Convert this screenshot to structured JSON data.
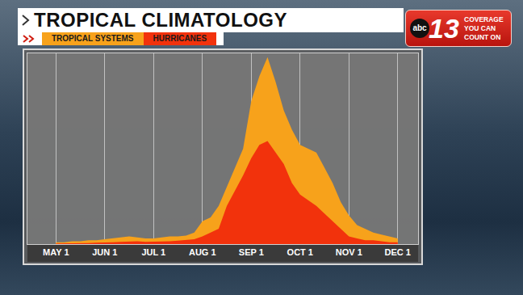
{
  "logo": {
    "network": "abc",
    "number": "13",
    "slogan": [
      "COVERAGE",
      "YOU CAN",
      "COUNT ON"
    ]
  },
  "chart_data": {
    "type": "area",
    "title": "TROPICAL CLIMATOLOGY",
    "categories": [
      null,
      null,
      null,
      "MAY 1",
      null,
      null,
      null,
      null,
      null,
      "JUN 1",
      null,
      null,
      null,
      null,
      null,
      "JUL 1",
      null,
      null,
      null,
      null,
      null,
      "AUG 1",
      null,
      null,
      null,
      null,
      null,
      "SEP 1",
      null,
      null,
      null,
      null,
      null,
      "OCT 1",
      null,
      null,
      null,
      null,
      null,
      "NOV 1",
      null,
      null,
      null,
      null,
      null,
      "DEC 1",
      null,
      null
    ],
    "series": [
      {
        "name": "TROPICAL SYSTEMS",
        "color": "#f7a21b",
        "values": [
          null,
          null,
          null,
          1,
          1,
          1.5,
          1.5,
          2,
          2,
          2.5,
          3,
          3.5,
          4,
          3.5,
          3,
          3,
          3.5,
          4,
          4,
          4.5,
          6,
          12,
          14,
          20,
          30,
          40,
          50,
          75,
          88,
          98,
          85,
          70,
          60,
          52,
          50,
          48,
          40,
          32,
          22,
          15,
          10,
          8,
          6,
          5,
          4,
          3,
          null,
          null
        ]
      },
      {
        "name": "HURRICANES",
        "color": "#f2320c",
        "values": [
          null,
          null,
          null,
          0.3,
          0.3,
          0.5,
          0.5,
          0.5,
          0.7,
          1,
          1,
          1.2,
          1.5,
          1.5,
          1.2,
          1.2,
          1.5,
          1.5,
          1.8,
          2,
          2.5,
          4,
          6,
          8,
          20,
          28,
          36,
          45,
          52,
          54,
          48,
          42,
          32,
          26,
          23,
          20,
          16,
          12,
          8,
          4,
          3,
          2,
          2,
          1.5,
          1,
          1,
          null,
          null
        ]
      }
    ],
    "ylim": [
      0,
      100
    ],
    "yticks": [],
    "grid": true,
    "stacked": false,
    "tick_labels": "x",
    "legend": "top left"
  }
}
